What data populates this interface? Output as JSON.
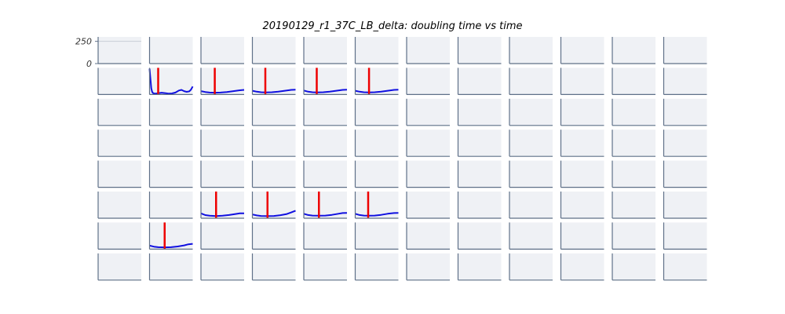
{
  "chart_data": {
    "type": "line",
    "title": "20190129_r1_37C_LB_delta: doubling time vs time",
    "grid": {
      "rows": 8,
      "cols": 12
    },
    "y_ticks": [
      "250",
      "0"
    ],
    "ylim": [
      0,
      300
    ],
    "xlim": [
      0,
      100
    ],
    "colors": {
      "curve": "#1010e0",
      "marker": "#ee0000",
      "panel_bg": "#eff1f5",
      "spine": "#5f7088",
      "ref_line": "#c9cdd6"
    },
    "wells": [
      {
        "row": 1,
        "col": 1,
        "marker_x": 20,
        "x": [
          0,
          2,
          4,
          6,
          8,
          10,
          14,
          20,
          28,
          36,
          44,
          52,
          60,
          68,
          74,
          80,
          86,
          92,
          96,
          100
        ],
        "y": [
          290,
          180,
          70,
          30,
          16,
          12,
          10,
          14,
          20,
          16,
          10,
          12,
          22,
          45,
          52,
          38,
          30,
          35,
          55,
          90
        ]
      },
      {
        "row": 1,
        "col": 2,
        "marker_x": 32,
        "x": [
          0,
          10,
          20,
          32,
          45,
          60,
          75,
          90,
          100
        ],
        "y": [
          38,
          28,
          22,
          20,
          22,
          28,
          38,
          48,
          52
        ]
      },
      {
        "row": 1,
        "col": 3,
        "marker_x": 30,
        "x": [
          0,
          10,
          20,
          30,
          45,
          60,
          75,
          90,
          100
        ],
        "y": [
          42,
          32,
          26,
          24,
          26,
          32,
          42,
          52,
          55
        ]
      },
      {
        "row": 1,
        "col": 4,
        "marker_x": 30,
        "x": [
          0,
          10,
          20,
          30,
          45,
          60,
          75,
          90,
          100
        ],
        "y": [
          45,
          32,
          26,
          24,
          26,
          32,
          42,
          52,
          55
        ]
      },
      {
        "row": 1,
        "col": 5,
        "marker_x": 32,
        "x": [
          0,
          10,
          20,
          32,
          45,
          60,
          75,
          90,
          100
        ],
        "y": [
          42,
          32,
          26,
          24,
          26,
          32,
          42,
          52,
          55
        ]
      },
      {
        "row": 5,
        "col": 2,
        "marker_x": 35,
        "x": [
          0,
          10,
          20,
          35,
          50,
          65,
          80,
          90,
          100
        ],
        "y": [
          55,
          35,
          28,
          24,
          28,
          36,
          48,
          55,
          55
        ]
      },
      {
        "row": 5,
        "col": 3,
        "marker_x": 35,
        "x": [
          0,
          10,
          20,
          35,
          50,
          65,
          80,
          90,
          100
        ],
        "y": [
          42,
          32,
          26,
          24,
          26,
          34,
          48,
          65,
          85
        ]
      },
      {
        "row": 5,
        "col": 4,
        "marker_x": 35,
        "x": [
          0,
          10,
          20,
          35,
          50,
          65,
          80,
          90,
          100
        ],
        "y": [
          50,
          36,
          30,
          28,
          30,
          38,
          50,
          58,
          60
        ]
      },
      {
        "row": 5,
        "col": 5,
        "marker_x": 30,
        "x": [
          0,
          10,
          20,
          30,
          45,
          60,
          75,
          90,
          100
        ],
        "y": [
          50,
          36,
          30,
          28,
          30,
          38,
          50,
          58,
          60
        ]
      },
      {
        "row": 6,
        "col": 1,
        "marker_x": 35,
        "x": [
          0,
          10,
          20,
          35,
          50,
          65,
          80,
          90,
          100
        ],
        "y": [
          40,
          28,
          22,
          20,
          22,
          30,
          42,
          55,
          60
        ]
      }
    ]
  }
}
